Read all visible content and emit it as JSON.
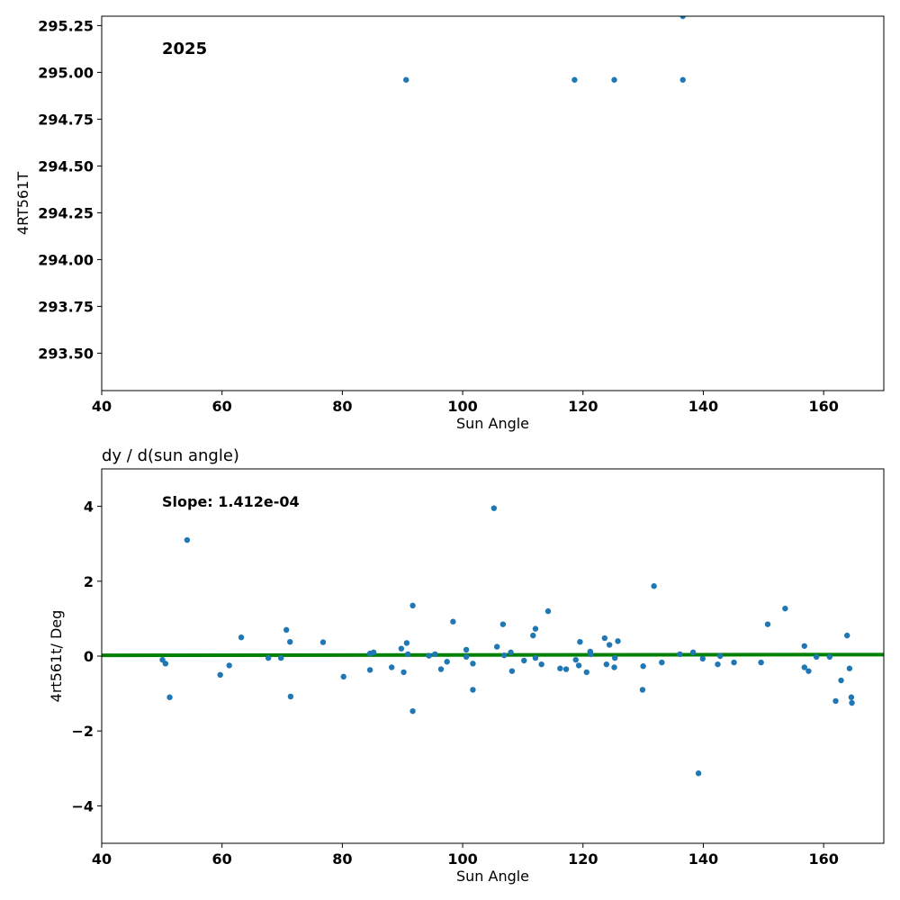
{
  "chart_data": [
    {
      "type": "scatter",
      "title": "",
      "annotation": "2025",
      "xlabel": "Sun Angle",
      "ylabel": "4RT561T",
      "xlim": [
        40,
        170
      ],
      "ylim": [
        293.3,
        295.3
      ],
      "xticks": [
        40,
        60,
        80,
        100,
        120,
        140,
        160
      ],
      "yticks": [
        293.5,
        293.75,
        294.0,
        294.25,
        294.5,
        294.75,
        295.0,
        295.25
      ],
      "ytick_labels": [
        "293.50",
        "293.75",
        "294.00",
        "294.25",
        "294.50",
        "294.75",
        "295.00",
        "295.25"
      ],
      "point_color": "#1f77b4",
      "points": [
        {
          "x": 90.6,
          "y": 294.96
        },
        {
          "x": 118.6,
          "y": 294.96
        },
        {
          "x": 125.2,
          "y": 294.96
        },
        {
          "x": 136.6,
          "y": 294.96
        },
        {
          "x": 136.6,
          "y": 295.3
        }
      ]
    },
    {
      "type": "scatter",
      "title": "dy / d(sun angle)",
      "annotation": "Slope: 1.412e-04",
      "xlabel": "Sun Angle",
      "ylabel": "4rt561t/ Deg",
      "xlim": [
        40,
        170
      ],
      "ylim": [
        -5,
        5
      ],
      "xticks": [
        40,
        60,
        80,
        100,
        120,
        140,
        160
      ],
      "yticks": [
        -4,
        -2,
        0,
        2,
        4
      ],
      "ytick_labels": [
        "−4",
        "−2",
        "0",
        "2",
        "4"
      ],
      "point_color": "#1f77b4",
      "fit_line": {
        "color": "#008000",
        "x": [
          40,
          170
        ],
        "y": [
          0.02,
          0.04
        ]
      },
      "points": [
        {
          "x": 50.1,
          "y": -0.1
        },
        {
          "x": 50.6,
          "y": -0.2
        },
        {
          "x": 51.3,
          "y": -1.1
        },
        {
          "x": 54.2,
          "y": 3.1
        },
        {
          "x": 59.7,
          "y": -0.5
        },
        {
          "x": 61.2,
          "y": -0.25
        },
        {
          "x": 63.2,
          "y": 0.5
        },
        {
          "x": 67.7,
          "y": -0.05
        },
        {
          "x": 69.8,
          "y": -0.05
        },
        {
          "x": 70.7,
          "y": 0.7
        },
        {
          "x": 71.3,
          "y": 0.38
        },
        {
          "x": 71.4,
          "y": -1.08
        },
        {
          "x": 76.8,
          "y": 0.37
        },
        {
          "x": 80.2,
          "y": -0.55
        },
        {
          "x": 84.6,
          "y": 0.07
        },
        {
          "x": 84.6,
          "y": -0.37
        },
        {
          "x": 85.2,
          "y": 0.1
        },
        {
          "x": 88.2,
          "y": -0.3
        },
        {
          "x": 89.8,
          "y": 0.2
        },
        {
          "x": 90.2,
          "y": -0.43
        },
        {
          "x": 90.7,
          "y": 0.35
        },
        {
          "x": 90.9,
          "y": 0.05
        },
        {
          "x": 91.7,
          "y": 1.35
        },
        {
          "x": 91.7,
          "y": -1.47
        },
        {
          "x": 94.4,
          "y": 0.01
        },
        {
          "x": 95.4,
          "y": 0.05
        },
        {
          "x": 96.4,
          "y": -0.35
        },
        {
          "x": 97.4,
          "y": -0.15
        },
        {
          "x": 98.4,
          "y": 0.92
        },
        {
          "x": 100.6,
          "y": 0.17
        },
        {
          "x": 100.6,
          "y": -0.02
        },
        {
          "x": 101.7,
          "y": -0.9
        },
        {
          "x": 101.7,
          "y": -0.2
        },
        {
          "x": 105.2,
          "y": 3.95
        },
        {
          "x": 105.7,
          "y": 0.25
        },
        {
          "x": 106.7,
          "y": 0.85
        },
        {
          "x": 106.9,
          "y": 0.02
        },
        {
          "x": 108.0,
          "y": 0.1
        },
        {
          "x": 108.2,
          "y": -0.4
        },
        {
          "x": 110.2,
          "y": -0.12
        },
        {
          "x": 111.7,
          "y": 0.55
        },
        {
          "x": 112.1,
          "y": 0.73
        },
        {
          "x": 112.1,
          "y": -0.05
        },
        {
          "x": 113.1,
          "y": -0.22
        },
        {
          "x": 114.2,
          "y": 1.2
        },
        {
          "x": 116.2,
          "y": -0.33
        },
        {
          "x": 117.2,
          "y": -0.35
        },
        {
          "x": 118.8,
          "y": -0.1
        },
        {
          "x": 119.3,
          "y": -0.25
        },
        {
          "x": 119.5,
          "y": 0.38
        },
        {
          "x": 120.6,
          "y": -0.43
        },
        {
          "x": 121.2,
          "y": 0.12
        },
        {
          "x": 121.3,
          "y": 0.05
        },
        {
          "x": 123.6,
          "y": 0.48
        },
        {
          "x": 123.9,
          "y": -0.22
        },
        {
          "x": 124.4,
          "y": 0.3
        },
        {
          "x": 125.2,
          "y": -0.3
        },
        {
          "x": 125.3,
          "y": -0.05
        },
        {
          "x": 125.8,
          "y": 0.4
        },
        {
          "x": 129.9,
          "y": -0.9
        },
        {
          "x": 130.0,
          "y": -0.27
        },
        {
          "x": 131.8,
          "y": 1.87
        },
        {
          "x": 133.1,
          "y": -0.17
        },
        {
          "x": 136.1,
          "y": 0.05
        },
        {
          "x": 138.3,
          "y": 0.1
        },
        {
          "x": 139.2,
          "y": -3.13
        },
        {
          "x": 139.9,
          "y": -0.07
        },
        {
          "x": 142.4,
          "y": -0.22
        },
        {
          "x": 142.8,
          "y": 0.0
        },
        {
          "x": 145.1,
          "y": -0.17
        },
        {
          "x": 149.6,
          "y": -0.17
        },
        {
          "x": 150.7,
          "y": 0.85
        },
        {
          "x": 153.6,
          "y": 1.27
        },
        {
          "x": 156.8,
          "y": 0.27
        },
        {
          "x": 156.8,
          "y": -0.3
        },
        {
          "x": 157.5,
          "y": -0.4
        },
        {
          "x": 158.8,
          "y": -0.02
        },
        {
          "x": 161.0,
          "y": -0.02
        },
        {
          "x": 162.0,
          "y": -1.2
        },
        {
          "x": 162.9,
          "y": -0.65
        },
        {
          "x": 163.9,
          "y": 0.55
        },
        {
          "x": 164.3,
          "y": -0.33
        },
        {
          "x": 164.6,
          "y": -1.1
        },
        {
          "x": 164.7,
          "y": -1.25
        }
      ]
    }
  ]
}
